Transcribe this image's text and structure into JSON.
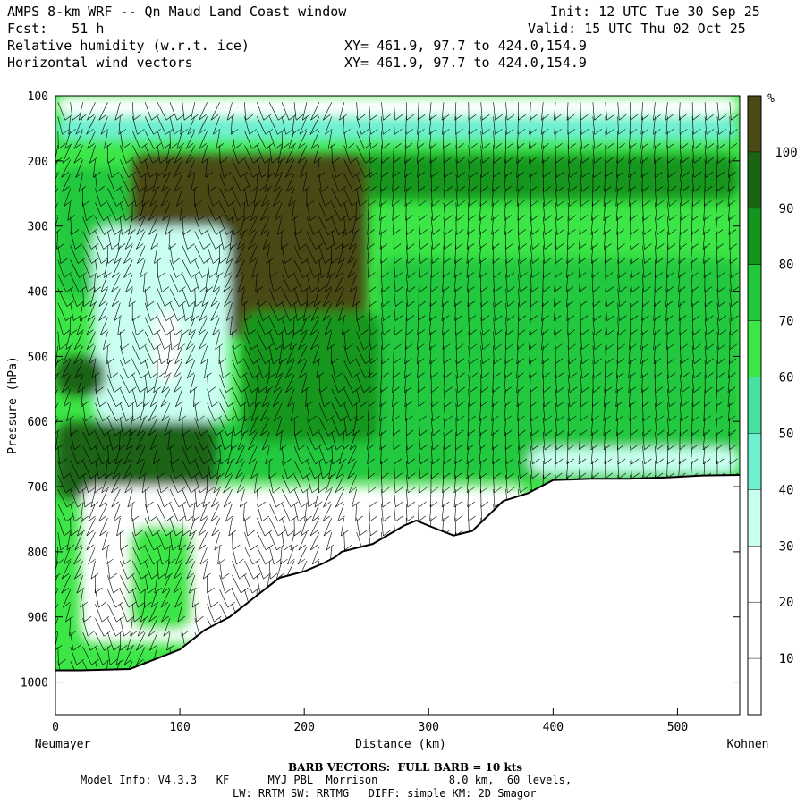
{
  "header": {
    "title": "AMPS 8-km WRF -- Qn Maud Land Coast window",
    "init": "Init: 12 UTC Tue 30 Sep 25",
    "fcst": "Fcst:   51 h",
    "valid": "Valid: 15 UTC Thu 02 Oct 25",
    "field1": "Relative humidity (w.r.t. ice)",
    "xy1": "XY= 461.9, 97.7 to 424.0,154.9",
    "field2": "Horizontal wind vectors",
    "xy2": "XY= 461.9, 97.7 to 424.0,154.9"
  },
  "footer": {
    "barb_note": "BARB VECTORS:  FULL BARB = 10 kts",
    "model_line1": "Model Info: V4.3.3   KF      MYJ PBL  Morrison           8.0 km,  60 levels,",
    "model_line2": "LW: RRTM SW: RRTMG   DIFF: simple KM: 2D Smagor"
  },
  "chart_data": {
    "type": "heatmap",
    "title": "Relative humidity (w.r.t. ice)",
    "xlabel": "Distance (km)",
    "ylabel": "Pressure (hPa)",
    "xlim": [
      0,
      550
    ],
    "ylim": [
      100,
      1050
    ],
    "y_inverted": true,
    "x_ticks": [
      0,
      100,
      200,
      300,
      400,
      500
    ],
    "y_ticks": [
      100,
      200,
      300,
      400,
      500,
      600,
      700,
      800,
      900,
      1000
    ],
    "x_start_label": "Neumayer",
    "x_end_label": "Kohnen",
    "colorbar": {
      "unit": "%",
      "levels": [
        10,
        20,
        30,
        40,
        50,
        60,
        70,
        80,
        90,
        100
      ],
      "colors": [
        "#ffffff",
        "#ffffff",
        "#ffffff",
        "#c8fff0",
        "#6ef0d0",
        "#46e0a0",
        "#3ce646",
        "#22c83c",
        "#14961e",
        "#1a6414",
        "#4a4a14"
      ],
      "position": "right"
    },
    "terrain_surface_hPa": {
      "x_km": [
        0,
        20,
        60,
        80,
        100,
        120,
        140,
        150,
        160,
        170,
        180,
        200,
        215,
        225,
        230,
        240,
        255,
        280,
        290,
        300,
        320,
        335,
        360,
        380,
        400,
        430,
        460,
        490,
        520,
        550
      ],
      "p": [
        982,
        982,
        980,
        965,
        950,
        920,
        900,
        885,
        870,
        855,
        840,
        830,
        818,
        808,
        800,
        795,
        788,
        760,
        752,
        760,
        775,
        768,
        722,
        710,
        690,
        688,
        688,
        686,
        683,
        682
      ]
    },
    "regions_rh_pct": [
      {
        "level": "100",
        "description": "upper mid-troposphere core",
        "x_km": [
          60,
          270
        ],
        "p_hPa": [
          190,
          460
        ]
      },
      {
        "level": "30-40",
        "description": "dry pocket",
        "x_km": [
          30,
          170
        ],
        "p_hPa": [
          300,
          600
        ]
      },
      {
        "level": "80-100",
        "description": "lower layer",
        "x_km": [
          0,
          120
        ],
        "p_hPa": [
          600,
          780
        ]
      },
      {
        "level": "20-30",
        "description": "near-surface dry band",
        "x_km": [
          20,
          380
        ],
        "p_hPa": [
          690,
          950
        ]
      }
    ]
  }
}
